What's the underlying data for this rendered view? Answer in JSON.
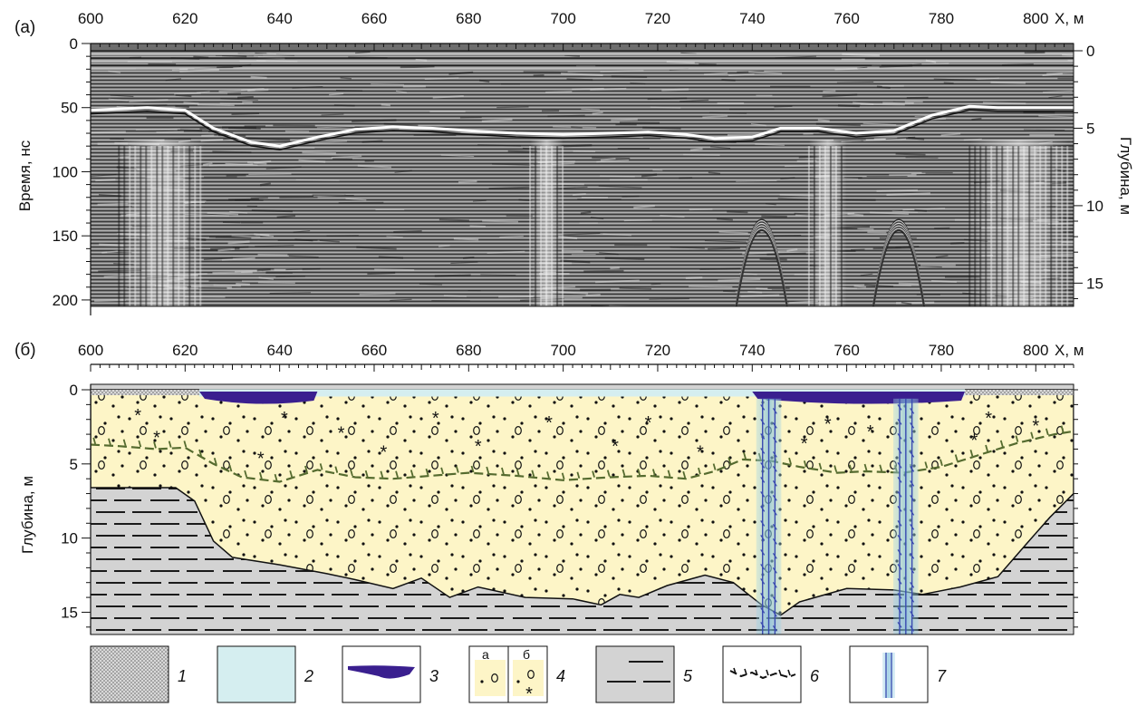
{
  "panel_a": {
    "label": "(а)",
    "x_axis_label": "X, м",
    "y_left_label": "Время, нс",
    "y_right_label": "Глубина, м",
    "x_ticks": [
      "600",
      "620",
      "640",
      "660",
      "680",
      "700",
      "720",
      "740",
      "760",
      "780",
      "800"
    ],
    "y_left_ticks": [
      "0",
      "50",
      "100",
      "150",
      "200"
    ],
    "y_right_ticks": [
      "0",
      "5",
      "10",
      "15"
    ]
  },
  "panel_b": {
    "label": "(б)",
    "x_axis_label": "X, м",
    "y_left_label": "Глубина, м",
    "x_ticks": [
      "600",
      "620",
      "640",
      "660",
      "680",
      "700",
      "720",
      "740",
      "760",
      "780",
      "800"
    ],
    "y_left_ticks": [
      "0",
      "5",
      "10",
      "15"
    ]
  },
  "legend": {
    "items": [
      {
        "num": "1"
      },
      {
        "num": "2"
      },
      {
        "num": "3"
      },
      {
        "num": "4",
        "sub_a": "а",
        "sub_b": "б"
      },
      {
        "num": "5"
      },
      {
        "num": "6"
      },
      {
        "num": "7"
      }
    ]
  },
  "chart_data": [
    {
      "type": "heatmap",
      "x_range": [
        600,
        808
      ],
      "time_range_ns": [
        0,
        200
      ],
      "depth_range_m": [
        0,
        16.5
      ],
      "x_ticks": [
        600,
        620,
        640,
        660,
        680,
        700,
        720,
        740,
        760,
        780,
        800
      ],
      "time_ticks": [
        0,
        50,
        100,
        150,
        200
      ],
      "depth_ticks": [
        0,
        5,
        10,
        15
      ],
      "reflector_time_ns": [
        [
          600,
          52
        ],
        [
          606,
          51
        ],
        [
          612,
          50
        ],
        [
          620,
          52
        ],
        [
          626,
          66
        ],
        [
          634,
          77
        ],
        [
          640,
          80
        ],
        [
          648,
          73
        ],
        [
          656,
          67
        ],
        [
          664,
          65
        ],
        [
          672,
          66
        ],
        [
          680,
          68
        ],
        [
          690,
          70
        ],
        [
          700,
          71
        ],
        [
          710,
          70
        ],
        [
          718,
          69
        ],
        [
          726,
          71
        ],
        [
          732,
          74
        ],
        [
          740,
          73
        ],
        [
          746,
          66
        ],
        [
          754,
          66
        ],
        [
          762,
          70
        ],
        [
          770,
          68
        ],
        [
          778,
          56
        ],
        [
          786,
          49
        ],
        [
          792,
          50
        ],
        [
          800,
          50
        ],
        [
          808,
          50
        ]
      ],
      "anomalies_x": [
        742,
        771
      ]
    },
    {
      "type": "area",
      "x_range": [
        600,
        808
      ],
      "depth_range_m": [
        0,
        16.5
      ],
      "x_ticks": [
        600,
        620,
        640,
        660,
        680,
        700,
        720,
        740,
        760,
        780,
        800
      ],
      "depth_ticks": [
        0,
        5,
        10,
        15
      ],
      "sand_base_depth_m": [
        [
          600,
          6.6
        ],
        [
          618,
          6.6
        ],
        [
          622,
          7.5
        ],
        [
          626,
          10.2
        ],
        [
          630,
          11.3
        ],
        [
          640,
          11.8
        ],
        [
          650,
          12.4
        ],
        [
          656,
          12.8
        ],
        [
          664,
          13.4
        ],
        [
          670,
          12.7
        ],
        [
          676,
          14.0
        ],
        [
          682,
          13.3
        ],
        [
          692,
          14.0
        ],
        [
          702,
          14.1
        ],
        [
          708,
          14.5
        ],
        [
          712,
          13.8
        ],
        [
          716,
          14.0
        ],
        [
          722,
          13.2
        ],
        [
          730,
          12.5
        ],
        [
          736,
          13.0
        ],
        [
          742,
          14.5
        ],
        [
          746,
          15.2
        ],
        [
          750,
          14.3
        ],
        [
          760,
          13.4
        ],
        [
          770,
          13.5
        ],
        [
          776,
          13.8
        ],
        [
          784,
          13.3
        ],
        [
          792,
          12.6
        ],
        [
          798,
          10.4
        ],
        [
          803,
          8.6
        ],
        [
          808,
          7.0
        ]
      ],
      "frozen_top_depth_m": [
        [
          600,
          3.7
        ],
        [
          606,
          3.8
        ],
        [
          614,
          4.0
        ],
        [
          620,
          3.9
        ],
        [
          626,
          5.0
        ],
        [
          632,
          5.9
        ],
        [
          640,
          6.2
        ],
        [
          648,
          5.4
        ],
        [
          656,
          5.9
        ],
        [
          664,
          6.0
        ],
        [
          672,
          5.8
        ],
        [
          680,
          5.6
        ],
        [
          690,
          5.8
        ],
        [
          700,
          6.1
        ],
        [
          710,
          5.9
        ],
        [
          718,
          5.8
        ],
        [
          726,
          6.0
        ],
        [
          732,
          5.5
        ],
        [
          738,
          4.7
        ],
        [
          744,
          4.8
        ],
        [
          750,
          5.2
        ],
        [
          758,
          5.6
        ],
        [
          764,
          5.5
        ],
        [
          772,
          5.6
        ],
        [
          780,
          5.2
        ],
        [
          786,
          4.6
        ],
        [
          790,
          4.2
        ],
        [
          796,
          3.6
        ],
        [
          804,
          3.0
        ],
        [
          808,
          2.8
        ]
      ],
      "water_surface_x": [
        623,
        785
      ],
      "peat_x_ranges": [
        [
          623,
          648
        ],
        [
          740,
          785
        ]
      ],
      "vertical_zones_x": [
        [
          742,
          745
        ],
        [
          771,
          774
        ]
      ]
    }
  ]
}
